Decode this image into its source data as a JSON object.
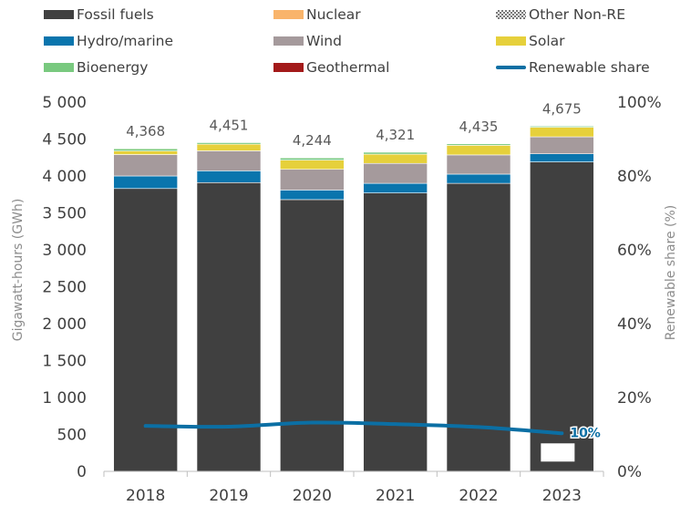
{
  "chart_data": {
    "type": "bar",
    "stacked": true,
    "categories": [
      "2018",
      "2019",
      "2020",
      "2021",
      "2022",
      "2023"
    ],
    "series": [
      {
        "name": "Fossil fuels",
        "color": "#404040",
        "values": [
          3830,
          3910,
          3680,
          3770,
          3900,
          4190
        ]
      },
      {
        "name": "Hydro/marine",
        "color": "#0a75ad",
        "values": [
          170,
          160,
          130,
          130,
          125,
          110
        ]
      },
      {
        "name": "Wind",
        "color": "#a59a9c",
        "values": [
          290,
          270,
          280,
          270,
          260,
          230
        ]
      },
      {
        "name": "Solar",
        "color": "#e6d03b",
        "values": [
          48,
          90,
          125,
          125,
          130,
          130
        ]
      },
      {
        "name": "Bioenergy",
        "color": "#79c97f",
        "values": [
          30,
          21,
          29,
          26,
          20,
          15
        ]
      },
      {
        "name": "Nuclear",
        "color": "#f9b46b",
        "values": [
          0,
          0,
          0,
          0,
          0,
          0
        ]
      },
      {
        "name": "Other Non-RE",
        "color": "#9a9a9a",
        "values": [
          0,
          0,
          0,
          0,
          0,
          0
        ]
      },
      {
        "name": "Geothermal",
        "color": "#a31a1a",
        "values": [
          0,
          0,
          0,
          0,
          0,
          0
        ]
      }
    ],
    "totals": [
      "4,368",
      "4,451",
      "4,244",
      "4,321",
      "4,435",
      "4,675"
    ],
    "line_series": {
      "name": "Renewable share",
      "color": "#0b6fa4",
      "values": [
        12.3,
        12.1,
        13.2,
        12.8,
        12.0,
        10.3
      ],
      "axis": "right"
    },
    "last_point_label": "10%",
    "ylabel": "Gigawatt-hours (GWh)",
    "ylabel_right": "Renewable share (%)",
    "ylim": [
      0,
      5000
    ],
    "ylim_right": [
      0,
      100
    ],
    "yticks": [
      "0",
      "500",
      "1 000",
      "1 500",
      "2 000",
      "2 500",
      "3 000",
      "3 500",
      "4 000",
      "4 500",
      "5 000"
    ],
    "yticks_right": [
      "0%",
      "20%",
      "40%",
      "60%",
      "80%",
      "100%"
    ],
    "grid": false,
    "legend_position": "top"
  },
  "legend": [
    {
      "label": "Fossil fuels",
      "color": "#404040",
      "kind": "box"
    },
    {
      "label": "Nuclear",
      "color": "#f9b46b",
      "kind": "box"
    },
    {
      "label": "Other Non-RE",
      "color": "#9a9a9a",
      "kind": "pattern"
    },
    {
      "label": "Hydro/marine",
      "color": "#0a75ad",
      "kind": "box"
    },
    {
      "label": "Wind",
      "color": "#a59a9c",
      "kind": "box"
    },
    {
      "label": "Solar",
      "color": "#e6d03b",
      "kind": "box"
    },
    {
      "label": "Bioenergy",
      "color": "#79c97f",
      "kind": "box"
    },
    {
      "label": "Geothermal",
      "color": "#a31a1a",
      "kind": "box"
    },
    {
      "label": "Renewable share",
      "color": "#0b6fa4",
      "kind": "line"
    }
  ]
}
